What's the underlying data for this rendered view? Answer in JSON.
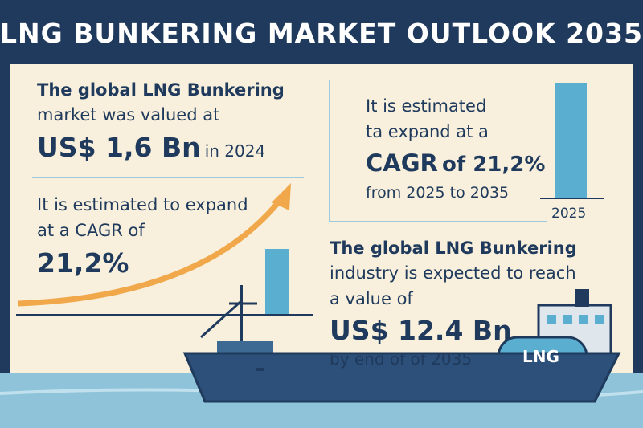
{
  "header": {
    "title": "LNG BUNKERING MARKET OUTLOOK 2035"
  },
  "panels": [
    {
      "lines": [
        "The global LNG Bunkering",
        "market was valued at"
      ],
      "value": "US$ 1,6 Bn",
      "suffix": "in 2024"
    },
    {
      "lines": [
        "It is estimated to expand",
        "at a CAGR of"
      ],
      "value": "21,2%"
    },
    {
      "lines": [
        "It is estimated",
        "ta expand at a"
      ],
      "value": "CAGR",
      "value_suffix": "of 21,2%",
      "footer": "from 2025 to 2035",
      "bar_label": "2025"
    },
    {
      "lines": [
        "The global LNG Bunkering",
        "industry is expected to reach",
        "a value of"
      ],
      "value": "US$ 12.4 Bn",
      "footer": "by end of of 2035"
    }
  ],
  "ship": {
    "tank_label": "LNG"
  }
}
